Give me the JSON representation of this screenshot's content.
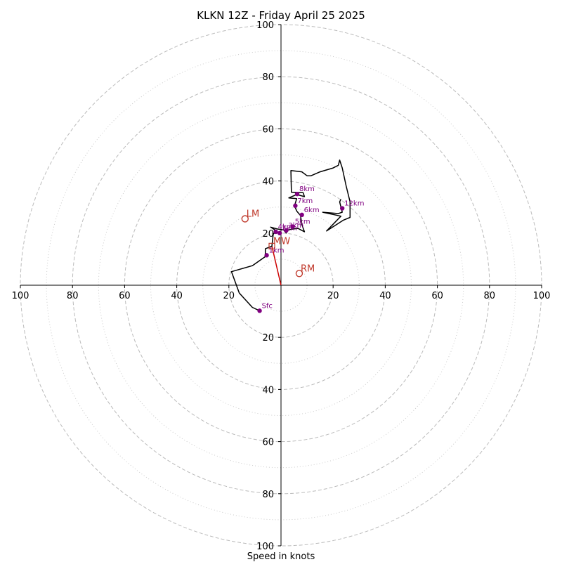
{
  "chart_data": {
    "type": "hodograph",
    "title": "KLKN 12Z - Friday April 25 2025",
    "xlabel": "Speed in knots",
    "range": [
      -100,
      100
    ],
    "rings": {
      "major": [
        20,
        40,
        60,
        80,
        100
      ],
      "minor": [
        10,
        30,
        50,
        70,
        90
      ]
    },
    "tick_values": [
      20,
      40,
      60,
      80,
      100
    ],
    "colors": {
      "trace": "#000000",
      "height_points": "#800080",
      "motion": "#c0392b",
      "mean_wind_vector": "#cc0000",
      "rings": "#bbbbbb",
      "axes": "#000000"
    },
    "trace": [
      [
        -8.2,
        -9.8
      ],
      [
        -11,
        -8.5
      ],
      [
        -16,
        -3
      ],
      [
        -19,
        5.2
      ],
      [
        -11,
        7.5
      ],
      [
        -6,
        11
      ],
      [
        -6,
        14
      ],
      [
        -3.5,
        15
      ],
      [
        -3,
        19.5
      ],
      [
        -2,
        21
      ],
      [
        -4,
        22.3
      ],
      [
        -1.5,
        21.6
      ],
      [
        1,
        21.2
      ],
      [
        2,
        20
      ],
      [
        2.2,
        21
      ],
      [
        4,
        21.5
      ],
      [
        6.5,
        21.8
      ],
      [
        9,
        20.5
      ],
      [
        8,
        23.2
      ],
      [
        7.5,
        26.7
      ],
      [
        6,
        28.5
      ],
      [
        5.2,
        30.5
      ],
      [
        6,
        33.2
      ],
      [
        3,
        33.5
      ],
      [
        6,
        34.8
      ],
      [
        9,
        34
      ],
      [
        8.5,
        35.5
      ],
      [
        4,
        35.7
      ],
      [
        3.8,
        44
      ],
      [
        8,
        43.5
      ],
      [
        10,
        42
      ],
      [
        11.5,
        42
      ],
      [
        15,
        43.5
      ],
      [
        20,
        45
      ],
      [
        22,
        46
      ],
      [
        22.5,
        48
      ],
      [
        23.5,
        45
      ],
      [
        25,
        38
      ],
      [
        26.5,
        32
      ],
      [
        26.5,
        26
      ],
      [
        24,
        25
      ],
      [
        17.5,
        20.8
      ],
      [
        23,
        26.5
      ],
      [
        16,
        28
      ],
      [
        22,
        27.5
      ],
      [
        23.5,
        28
      ],
      [
        23,
        30
      ],
      [
        22.5,
        32
      ],
      [
        23,
        33
      ]
    ],
    "height_points": [
      {
        "label": "Sfc",
        "x": -8.2,
        "y": -9.8
      },
      {
        "label": "1km",
        "x": -5.5,
        "y": 11.5
      },
      {
        "label": "2km",
        "x": -0.5,
        "y": 20
      },
      {
        "label": "3km",
        "x": 2,
        "y": 21
      },
      {
        "label": "4km",
        "x": -2,
        "y": 20.5
      },
      {
        "label": "5km",
        "x": 4.5,
        "y": 22.5
      },
      {
        "label": "6km",
        "x": 8,
        "y": 27
      },
      {
        "label": "7km",
        "x": 5.5,
        "y": 30.5
      },
      {
        "label": "8km",
        "x": 6.2,
        "y": 35
      },
      {
        "label": "12km",
        "x": 23.5,
        "y": 29.5
      }
    ],
    "storm_motion": [
      {
        "label": "LM",
        "x": -13.8,
        "y": 25.5
      },
      {
        "label": "RM",
        "x": 7,
        "y": 4.5
      },
      {
        "label": "MW",
        "x": -3.5,
        "y": 15
      }
    ],
    "mean_wind_vector": {
      "from": [
        0,
        0
      ],
      "to": [
        -3.5,
        15
      ]
    }
  }
}
